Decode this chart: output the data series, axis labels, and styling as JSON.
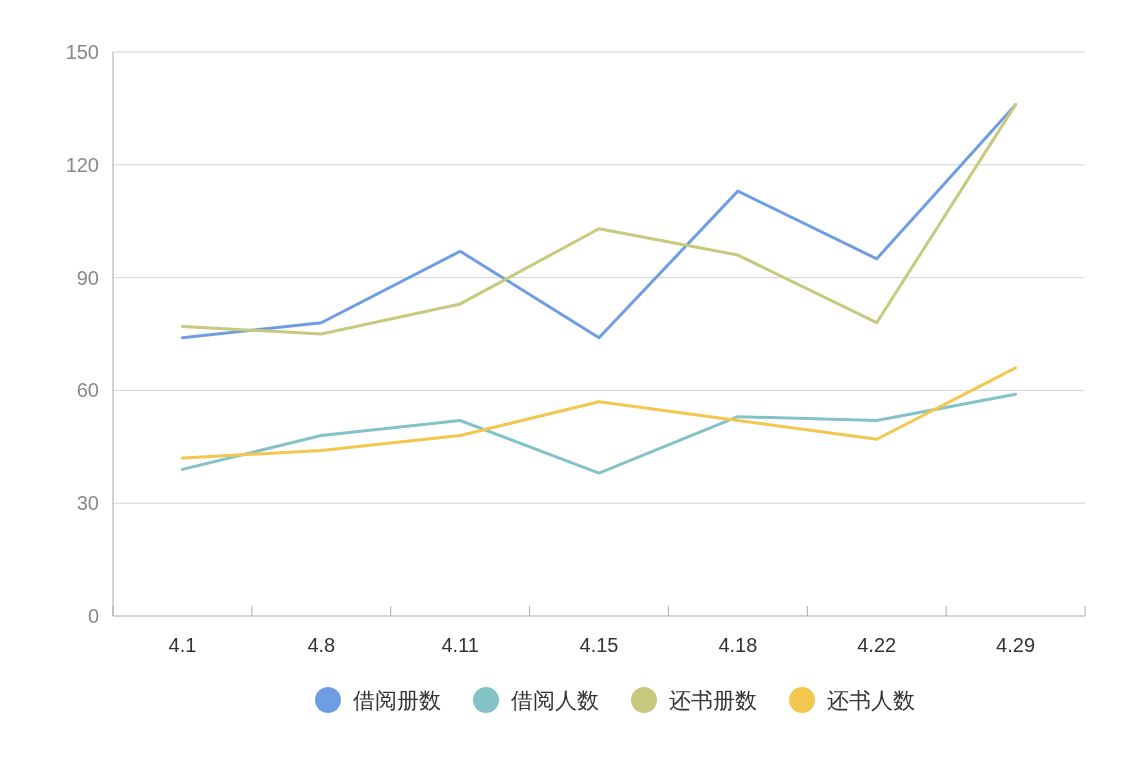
{
  "chart_data": {
    "type": "line",
    "categories": [
      "4.1",
      "4.8",
      "4.11",
      "4.15",
      "4.18",
      "4.22",
      "4.29"
    ],
    "series": [
      {
        "name": "借阅册数",
        "color": "#6f9de3",
        "values": [
          74,
          78,
          97,
          74,
          113,
          95,
          136
        ]
      },
      {
        "name": "借阅人数",
        "color": "#83c2c7",
        "values": [
          39,
          48,
          52,
          38,
          53,
          52,
          59
        ]
      },
      {
        "name": "还书册数",
        "color": "#c6c97e",
        "values": [
          77,
          75,
          83,
          103,
          96,
          78,
          136
        ]
      },
      {
        "name": "还书人数",
        "color": "#f3c74e",
        "values": [
          42,
          44,
          48,
          57,
          52,
          47,
          66
        ]
      }
    ],
    "ylim": [
      0,
      150
    ],
    "yticks": [
      0,
      30,
      60,
      90,
      120,
      150
    ],
    "grid": "y",
    "legend": "bottom",
    "marker": "none",
    "line_style": "solid"
  }
}
